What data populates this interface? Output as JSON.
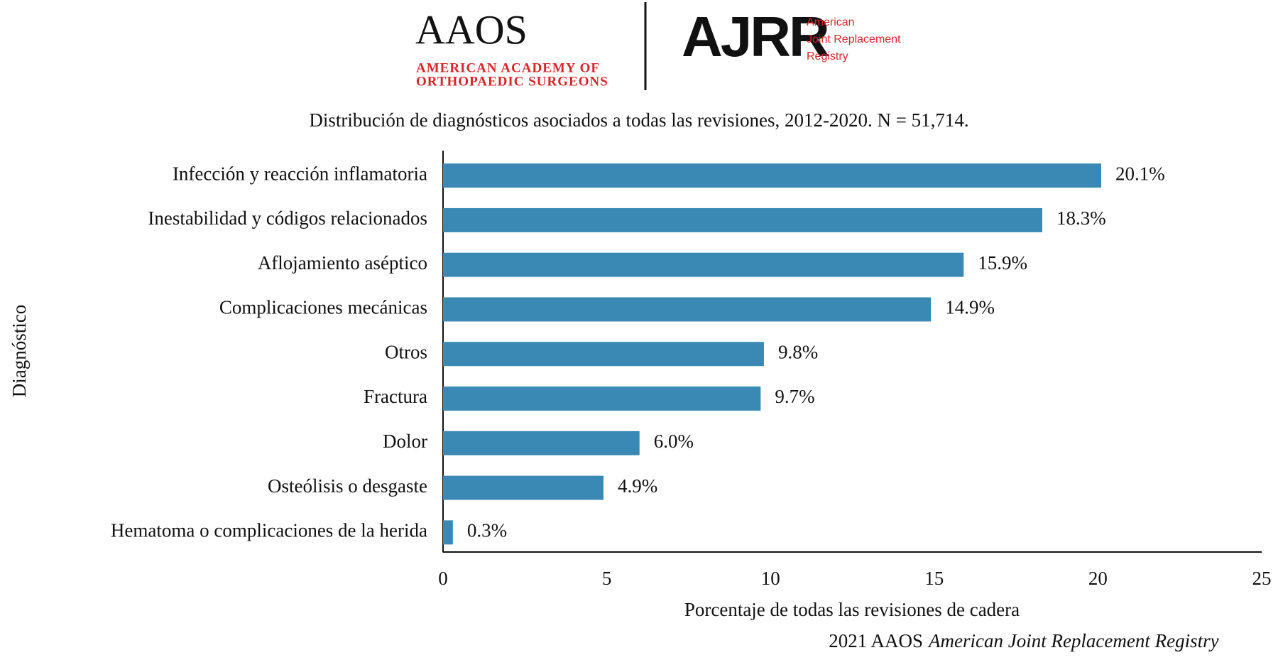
{
  "logos": {
    "aaos": "AAOS",
    "aaos_line1": "AMERICAN ACADEMY OF",
    "aaos_line2": "ORTHOPAEDIC SURGEONS",
    "ajrr": "AJRR",
    "ajrr_line1": "American",
    "ajrr_line2": "Joint Replacement",
    "ajrr_line3": "Registry"
  },
  "chart_data": {
    "type": "bar",
    "orientation": "horizontal",
    "title": "Distribución de diagnósticos asociados a todas las revisiones, 2012-2020. N = 51,714.",
    "y_label": "Diagnóstico",
    "x_label": "Porcentaje de todas las revisiones de cadera",
    "categories": [
      "Infección y reacción inflamatoria",
      "Inestabilidad y códigos relacionados",
      "Aflojamiento aséptico",
      "Complicaciones mecánicas",
      "Otros",
      "Fractura",
      "Dolor",
      "Osteólisis o desgaste",
      "Hematoma o complicaciones de la herida"
    ],
    "values": [
      20.1,
      18.3,
      15.9,
      14.9,
      9.8,
      9.7,
      6.0,
      4.9,
      0.3
    ],
    "value_labels": [
      "20.1%",
      "18.3%",
      "15.9%",
      "14.9%",
      "9.8%",
      "9.7%",
      "6.0%",
      "4.9%",
      "0.3%"
    ],
    "color": "#3a89b5",
    "xlim": [
      0,
      25
    ],
    "xticks": [
      0,
      5,
      10,
      15,
      20,
      25
    ],
    "grid": false
  },
  "footer": {
    "source": "2021 AAOS",
    "registry": "American Joint Replacement Registry"
  }
}
